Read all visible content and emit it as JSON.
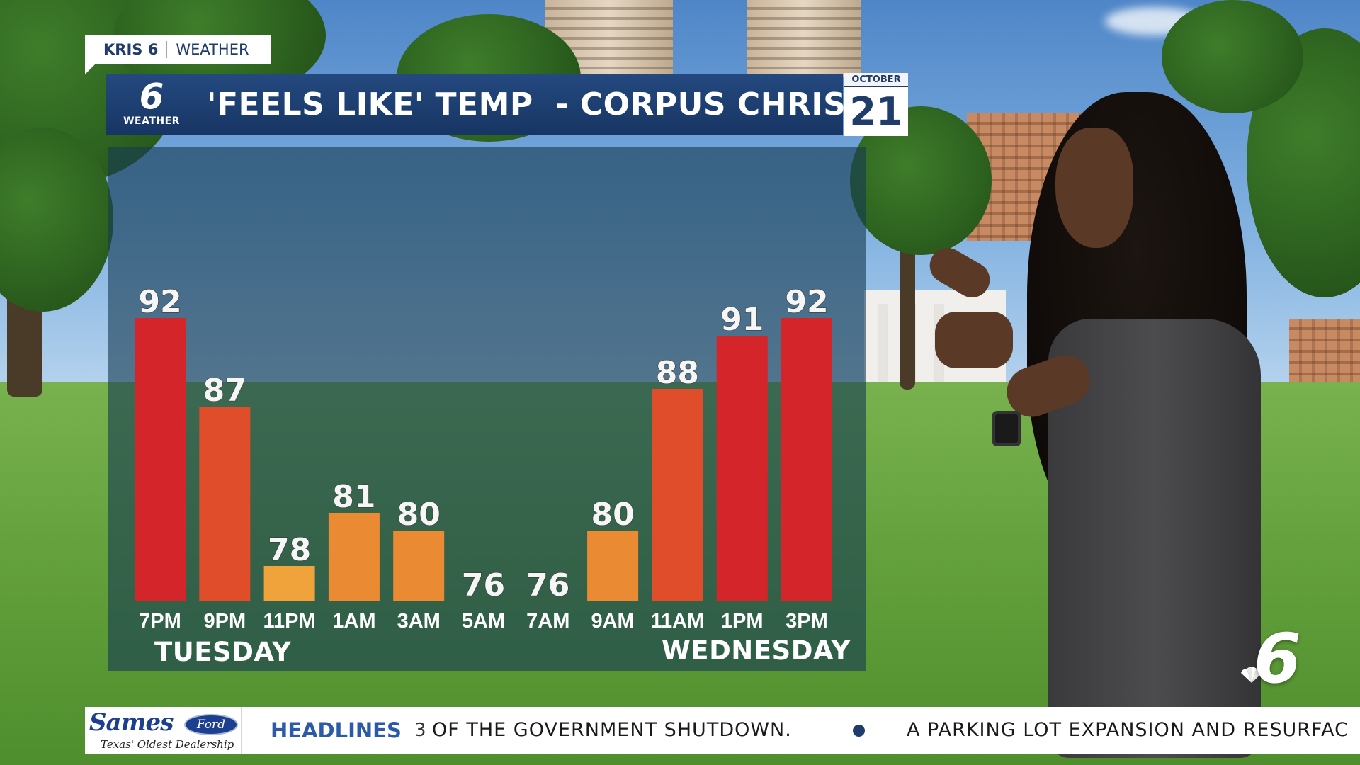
{
  "branding": {
    "station": "KRIS 6",
    "section": "WEATHER",
    "logo_number": "6",
    "logo_label": "WEATHER"
  },
  "title_bar": {
    "title": "'FEELS LIKE' TEMP  - CORPUS CHRISTI"
  },
  "date": {
    "month": "OCTOBER",
    "day": "21"
  },
  "chart_data": {
    "type": "bar",
    "title": "'FEELS LIKE' TEMP  - CORPUS CHRISTI",
    "categories": [
      "7PM",
      "9PM",
      "11PM",
      "1AM",
      "3AM",
      "5AM",
      "7AM",
      "9AM",
      "11AM",
      "1PM",
      "3PM"
    ],
    "values": [
      92,
      87,
      78,
      81,
      80,
      76,
      76,
      80,
      88,
      91,
      92
    ],
    "day_groups": [
      "TUESDAY",
      "WEDNESDAY"
    ],
    "xlabel": "",
    "ylabel": "",
    "grid": false,
    "colors": {
      "hot": "#d4262a",
      "warm": "#df4d2b",
      "mild": "#ea8a33",
      "cool": "#efa33a"
    }
  },
  "ticker": {
    "sponsor_name": "Sames",
    "sponsor_brand": "Ford",
    "sponsor_tagline": "Texas' Oldest Dealership",
    "label": "HEADLINES",
    "fragment": "3",
    "story_1": "OF THE GOVERNMENT SHUTDOWN.",
    "story_2": "A PARKING LOT EXPANSION AND RESURFAC"
  },
  "corner_bug": {
    "number": "6"
  }
}
